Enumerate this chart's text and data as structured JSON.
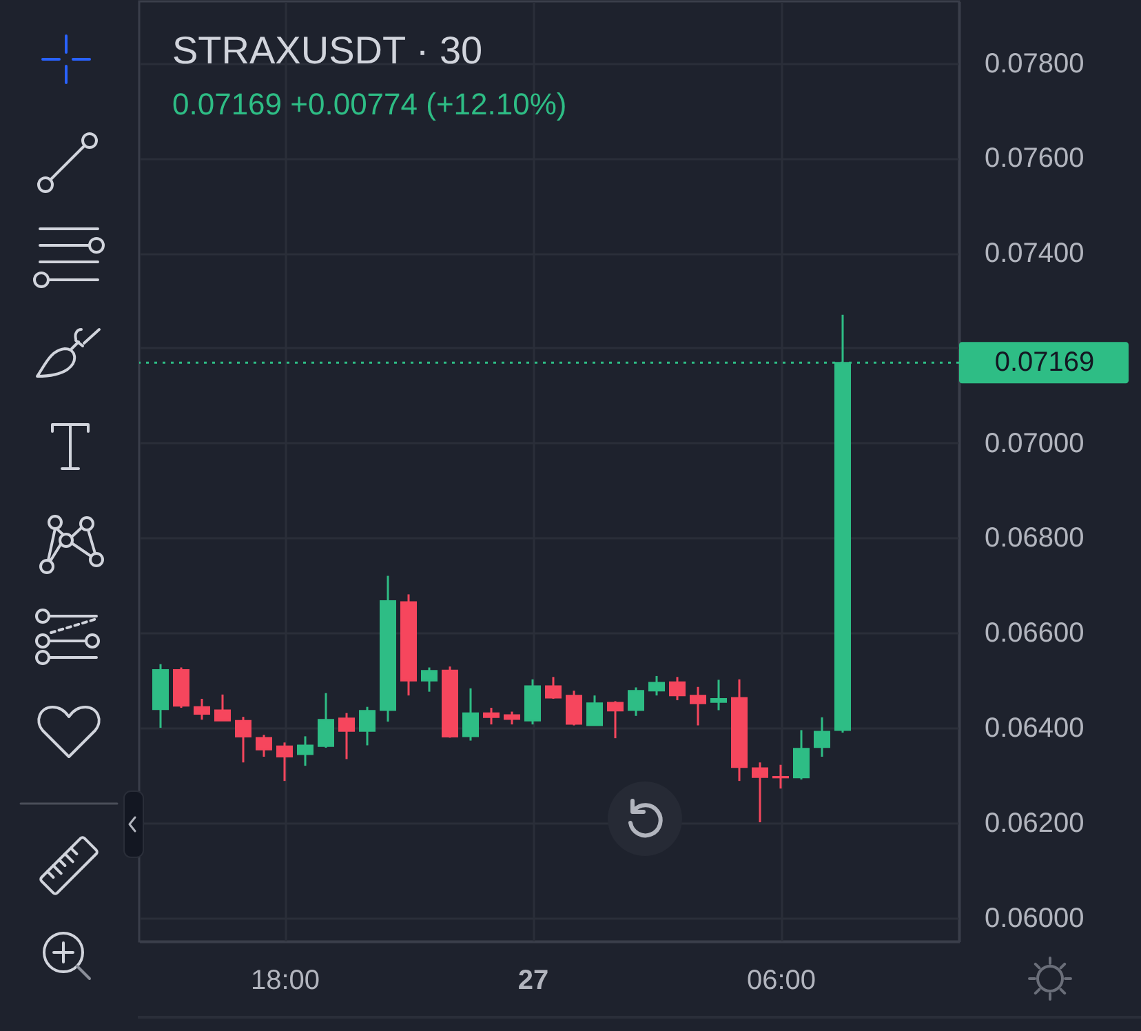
{
  "chart_data": {
    "type": "candlestick",
    "title": "STRAXUSDT · 30",
    "subtitle": "0.07169 +0.00774 (+12.10%)",
    "categories": [
      null,
      null,
      null,
      null,
      null,
      null,
      "18:00",
      null,
      null,
      null,
      null,
      null,
      null,
      null,
      null,
      null,
      null,
      null,
      "27",
      null,
      null,
      null,
      null,
      null,
      null,
      null,
      null,
      null,
      null,
      null,
      "06:00",
      null,
      null,
      null
    ],
    "ohlc": [
      [
        0.06439,
        0.06534,
        0.064,
        0.06522
      ],
      [
        0.06522,
        0.06527,
        0.06442,
        0.06446
      ],
      [
        0.06444,
        0.06461,
        0.06417,
        0.06429
      ],
      [
        0.06437,
        0.0647,
        0.06415,
        0.06415
      ],
      [
        0.06415,
        0.06423,
        0.06327,
        0.06381
      ],
      [
        0.06379,
        0.06385,
        0.06339,
        0.06354
      ],
      [
        0.06361,
        0.06369,
        0.06288,
        0.06339
      ],
      [
        0.06344,
        0.06382,
        0.0632,
        0.06363
      ],
      [
        0.06361,
        0.06473,
        0.06358,
        0.06417
      ],
      [
        0.0642,
        0.06431,
        0.06334,
        0.06393
      ],
      [
        0.06393,
        0.06444,
        0.06363,
        0.06436
      ],
      [
        0.06437,
        0.0672,
        0.06413,
        0.06667
      ],
      [
        0.06665,
        0.06681,
        0.06468,
        0.06499
      ],
      [
        0.06499,
        0.06527,
        0.06476,
        0.0652
      ],
      [
        0.06521,
        0.06529,
        0.06379,
        0.06381
      ],
      [
        0.06382,
        0.06483,
        0.06373,
        0.06431
      ],
      [
        0.06431,
        0.06442,
        0.06407,
        0.06422
      ],
      [
        0.06427,
        0.06434,
        0.06407,
        0.06418
      ],
      [
        0.06415,
        0.06502,
        0.06407,
        0.06488
      ],
      [
        0.06488,
        0.06507,
        0.06461,
        0.06463
      ],
      [
        0.06468,
        0.06478,
        0.06405,
        0.06408
      ],
      [
        0.06405,
        0.06468,
        0.06405,
        0.06452
      ],
      [
        0.06453,
        0.06456,
        0.06378,
        0.06436
      ],
      [
        0.06437,
        0.06485,
        0.06425,
        0.06478
      ],
      [
        0.06478,
        0.06509,
        0.06468,
        0.06495
      ],
      [
        0.06496,
        0.06507,
        0.06458,
        0.06468
      ],
      [
        0.06468,
        0.06486,
        0.06405,
        0.06451
      ],
      [
        0.06454,
        0.06501,
        0.06437,
        0.06461
      ],
      [
        0.06463,
        0.06502,
        0.06288,
        0.06317
      ],
      [
        0.06315,
        0.06327,
        0.06201,
        0.06296
      ],
      [
        0.06297,
        0.06322,
        0.06272,
        0.06295
      ],
      [
        0.06295,
        0.06395,
        0.06291,
        0.06356
      ],
      [
        0.06359,
        0.06422,
        0.06339,
        0.06392
      ],
      [
        0.06395,
        0.0727,
        0.0639,
        0.07169
      ]
    ],
    "colors": [
      "#2ebd85",
      "#f6465d",
      "#f6465d",
      "#f6465d",
      "#f6465d",
      "#f6465d",
      "#f6465d",
      "#2ebd85",
      "#2ebd85",
      "#f6465d",
      "#2ebd85",
      "#2ebd85",
      "#f6465d",
      "#2ebd85",
      "#f6465d",
      "#2ebd85",
      "#f6465d",
      "#f6465d",
      "#2ebd85",
      "#f6465d",
      "#f6465d",
      "#2ebd85",
      "#f6465d",
      "#2ebd85",
      "#2ebd85",
      "#f6465d",
      "#f6465d",
      "#2ebd85",
      "#f6465d",
      "#f6465d",
      "#f6465d",
      "#2ebd85",
      "#2ebd85",
      "#2ebd85"
    ],
    "ylim": [
      0.0595,
      0.0793
    ],
    "yticks": [
      {
        "value": 0.06,
        "label": "0.06000"
      },
      {
        "value": 0.062,
        "label": "0.06200"
      },
      {
        "value": 0.064,
        "label": "0.06400"
      },
      {
        "value": 0.066,
        "label": "0.06600"
      },
      {
        "value": 0.068,
        "label": "0.06800"
      },
      {
        "value": 0.07,
        "label": "0.07000"
      },
      {
        "value": 0.072,
        "label": null
      },
      {
        "value": 0.074,
        "label": "0.07400"
      },
      {
        "value": 0.076,
        "label": "0.07600"
      },
      {
        "value": 0.078,
        "label": "0.07800"
      }
    ],
    "ref_lines": [
      {
        "axis": "y",
        "value": 0.07169,
        "label": "0.07169",
        "color": "#2ebd85",
        "line_style": "dotted"
      }
    ],
    "grid": true
  }
}
